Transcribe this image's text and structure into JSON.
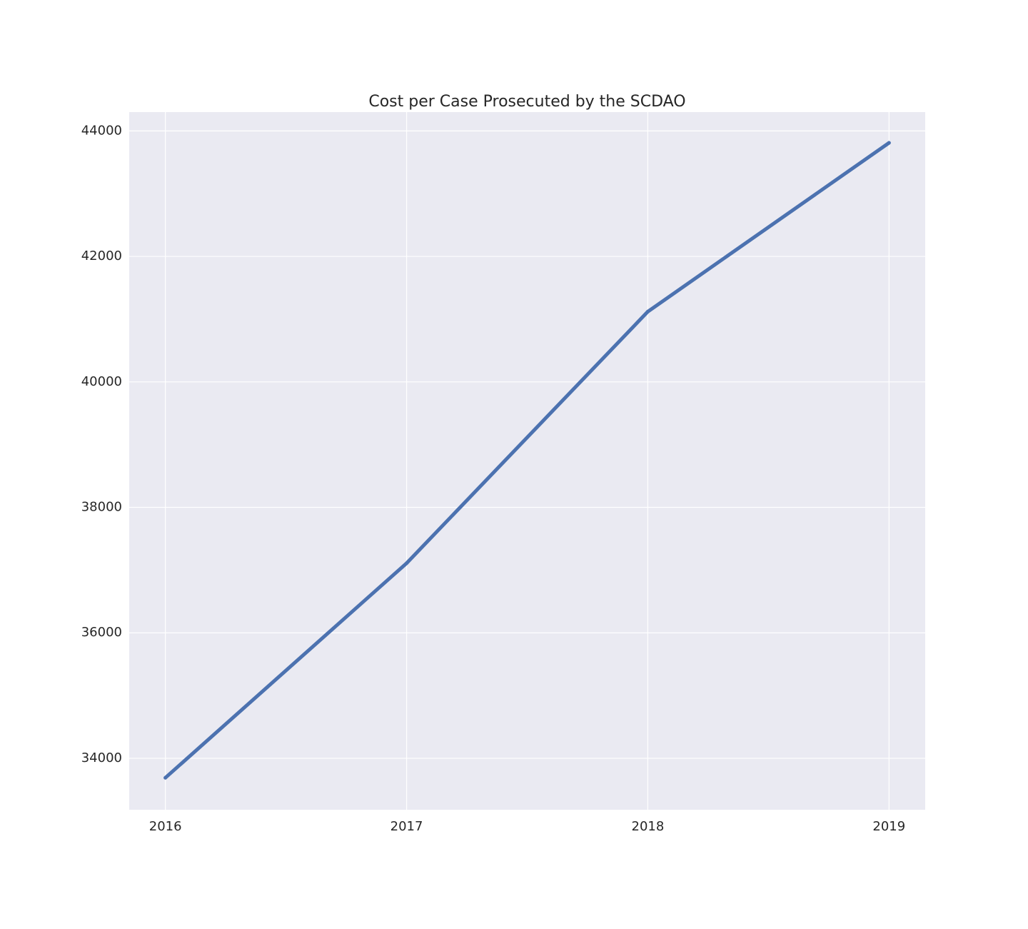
{
  "chart_data": {
    "type": "line",
    "title": "Cost per Case Prosecuted by the SCDAO",
    "xlabel": "",
    "ylabel": "",
    "x": [
      2016,
      2017,
      2018,
      2019
    ],
    "series": [
      {
        "values": [
          33690,
          37110,
          41120,
          43810
        ]
      }
    ],
    "xlim": [
      2015.85,
      2019.15
    ],
    "ylim": [
      33180,
      44300
    ],
    "x_ticks": [
      2016,
      2017,
      2018,
      2019
    ],
    "x_tick_labels": [
      "2016",
      "2017",
      "2018",
      "2019"
    ],
    "y_ticks": [
      34000,
      36000,
      38000,
      40000,
      42000,
      44000
    ],
    "y_tick_labels": [
      "34000",
      "36000",
      "38000",
      "40000",
      "42000",
      "44000"
    ],
    "grid": true,
    "legend": "none",
    "colors": {
      "background": "#eaeaf2",
      "grid": "#ffffff",
      "line": "#4c72b0",
      "text": "#262626"
    }
  }
}
